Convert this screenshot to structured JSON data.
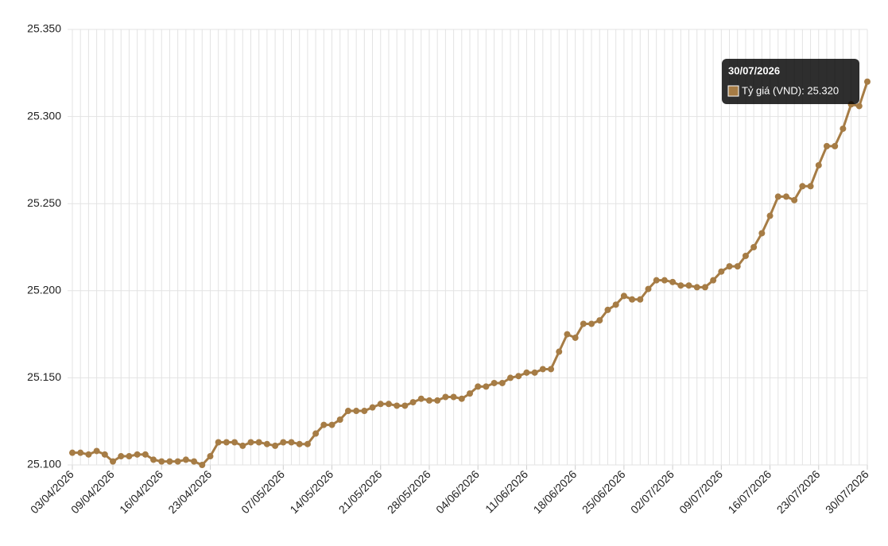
{
  "chart_data": {
    "type": "line",
    "categories": [
      "03/04/2026",
      null,
      null,
      null,
      null,
      "09/04/2026",
      null,
      null,
      null,
      null,
      null,
      "16/04/2026",
      null,
      null,
      null,
      null,
      null,
      "23/04/2026",
      null,
      null,
      null,
      null,
      null,
      null,
      null,
      null,
      "07/05/2026",
      null,
      null,
      null,
      null,
      null,
      "14/05/2026",
      null,
      null,
      null,
      null,
      null,
      "21/05/2026",
      null,
      null,
      null,
      null,
      null,
      "28/05/2026",
      null,
      null,
      null,
      null,
      null,
      "04/06/2026",
      null,
      null,
      null,
      null,
      null,
      "11/06/2026",
      null,
      null,
      null,
      null,
      null,
      "18/06/2026",
      null,
      null,
      null,
      null,
      null,
      "25/06/2026",
      null,
      null,
      null,
      null,
      null,
      "02/07/2026",
      null,
      null,
      null,
      null,
      null,
      "09/07/2026",
      null,
      null,
      null,
      null,
      null,
      "16/07/2026",
      null,
      null,
      null,
      null,
      null,
      "23/07/2026",
      null,
      null,
      null,
      null,
      null,
      "30/07/2026"
    ],
    "series": [
      {
        "name": "Tỷ giá (VND)",
        "color": "#a67c45",
        "values": [
          25107,
          25107,
          25106,
          25108,
          25106,
          25102,
          25105,
          25105,
          25106,
          25106,
          25103,
          25102,
          25102,
          25102,
          25103,
          25102,
          25100,
          25105,
          25113,
          25113,
          25113,
          25111,
          25113,
          25113,
          25112,
          25111,
          25113,
          25113,
          25112,
          25112,
          25118,
          25123,
          25123,
          25126,
          25131,
          25131,
          25131,
          25133,
          25135,
          25135,
          25134,
          25134,
          25136,
          25138,
          25137,
          25137,
          25139,
          25139,
          25138,
          25141,
          25145,
          25145,
          25147,
          25147,
          25150,
          25151,
          25153,
          25153,
          25155,
          25155,
          25165,
          25175,
          25173,
          25181,
          25181,
          25183,
          25189,
          25192,
          25197,
          25195,
          25195,
          25201,
          25206,
          25206,
          25205,
          25203,
          25203,
          25202,
          25202,
          25206,
          25211,
          25214,
          25214,
          25220,
          25225,
          25233,
          25243,
          25254,
          25254,
          25252,
          25260,
          25260,
          25272,
          25283,
          25283,
          25293,
          25307,
          25306,
          25320
        ]
      }
    ],
    "ylim": [
      25100,
      25350
    ],
    "yticks": [
      {
        "value": 25100,
        "label": "25.100"
      },
      {
        "value": 25150,
        "label": "25.150"
      },
      {
        "value": 25200,
        "label": "25.200"
      },
      {
        "value": 25250,
        "label": "25.250"
      },
      {
        "value": 25300,
        "label": "25.300"
      },
      {
        "value": 25350,
        "label": "25.350"
      }
    ],
    "grid": true,
    "tooltip": {
      "title": "30/07/2026",
      "label": "Tỷ giá (VND): 25.320"
    }
  }
}
